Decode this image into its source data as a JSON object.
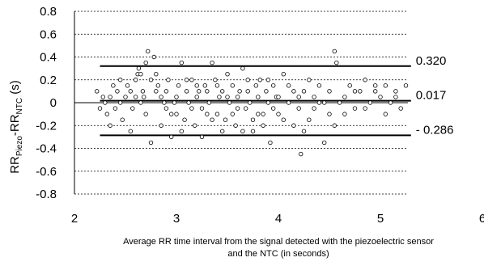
{
  "chart_data": {
    "type": "scatter",
    "title": "",
    "xlabel_line1": "Average RR time interval from the signal detected with the piezoelectric sensor",
    "xlabel_line2": "and the NTC (in seconds)",
    "ylabel": {
      "main": "RR",
      "sub1": "Piezo",
      "dash": "-RR",
      "sub2": "NTC",
      "unit": " (s)"
    },
    "xlim": [
      2,
      6
    ],
    "ylim": [
      -0.8,
      0.8
    ],
    "xticks": [
      2,
      3,
      4,
      5,
      6
    ],
    "xtick_labels": [
      "2",
      "3",
      "4",
      "5",
      "6"
    ],
    "yticks": [
      0.8,
      0.6,
      0.4,
      0.2,
      0,
      -0.2,
      -0.4,
      -0.6,
      -0.8
    ],
    "ytick_labels": [
      "0.8",
      "0.6",
      "0.4",
      "0.2",
      "0",
      "-0.2",
      "-0.4",
      "-0.6",
      "-0.8"
    ],
    "grid": "horizontal-dashed",
    "reference_lines": [
      {
        "y": 0.32,
        "label": "0.320"
      },
      {
        "y": 0.017,
        "label": "0.017"
      },
      {
        "y": -0.286,
        "label": "- 0.286"
      }
    ],
    "reference_line_x_range": [
      2.25,
      5.3
    ],
    "points": [
      [
        2.22,
        0.1
      ],
      [
        2.25,
        -0.05
      ],
      [
        2.28,
        0.05
      ],
      [
        2.3,
        0
      ],
      [
        2.32,
        -0.1
      ],
      [
        2.35,
        0.05
      ],
      [
        2.38,
        0.15
      ],
      [
        2.4,
        -0.05
      ],
      [
        2.42,
        0.1
      ],
      [
        2.45,
        0
      ],
      [
        2.47,
        -0.15
      ],
      [
        2.5,
        0.05
      ],
      [
        2.52,
        0.15
      ],
      [
        2.55,
        0.1
      ],
      [
        2.57,
        -0.05
      ],
      [
        2.6,
        0.2
      ],
      [
        2.62,
        0.25
      ],
      [
        2.63,
        0.3
      ],
      [
        2.65,
        0.25
      ],
      [
        2.67,
        0.1
      ],
      [
        2.68,
        0.05
      ],
      [
        2.7,
        0.35
      ],
      [
        2.72,
        0.45
      ],
      [
        2.75,
        0.2
      ],
      [
        2.78,
        0.4
      ],
      [
        2.8,
        0.25
      ],
      [
        2.82,
        0.15
      ],
      [
        2.85,
        0.05
      ],
      [
        2.88,
        0
      ],
      [
        2.9,
        -0.05
      ],
      [
        2.92,
        0.2
      ],
      [
        2.95,
        -0.1
      ],
      [
        2.98,
        0
      ],
      [
        3,
        0.05
      ],
      [
        3.02,
        0.15
      ],
      [
        3.05,
        0.35
      ],
      [
        3.08,
        -0.15
      ],
      [
        3.1,
        0.1
      ],
      [
        3.12,
        0
      ],
      [
        3.15,
        0.2
      ],
      [
        3.18,
        -0.2
      ],
      [
        3.2,
        0.05
      ],
      [
        3.22,
        0.1
      ],
      [
        3.25,
        -0.05
      ],
      [
        3.28,
        0.15
      ],
      [
        3.3,
        0.1
      ],
      [
        3.32,
        0
      ],
      [
        3.35,
        0.35
      ],
      [
        3.38,
        0.2
      ],
      [
        3.4,
        -0.1
      ],
      [
        3.42,
        0.05
      ],
      [
        3.45,
        0.1
      ],
      [
        3.48,
        -0.15
      ],
      [
        3.5,
        0.25
      ],
      [
        3.52,
        0
      ],
      [
        3.55,
        0.15
      ],
      [
        3.58,
        -0.2
      ],
      [
        3.6,
        0.05
      ],
      [
        3.62,
        0.1
      ],
      [
        3.65,
        0.3
      ],
      [
        3.68,
        -0.05
      ],
      [
        3.7,
        0.2
      ],
      [
        3.72,
        0
      ],
      [
        3.75,
        -0.25
      ],
      [
        3.78,
        0.15
      ],
      [
        3.8,
        0.05
      ],
      [
        3.82,
        0.2
      ],
      [
        3.85,
        -0.1
      ],
      [
        3.88,
        0.1
      ],
      [
        3.9,
        0
      ],
      [
        3.92,
        -0.35
      ],
      [
        3.95,
        0.15
      ],
      [
        3.98,
        0.05
      ],
      [
        4,
        -0.1
      ],
      [
        4.05,
        0.25
      ],
      [
        4.1,
        0
      ],
      [
        4.15,
        -0.2
      ],
      [
        4.2,
        0.05
      ],
      [
        4.22,
        -0.45
      ],
      [
        4.25,
        0.1
      ],
      [
        4.3,
        0.2
      ],
      [
        4.35,
        -0.05
      ],
      [
        4.4,
        0.15
      ],
      [
        4.45,
        -0.35
      ],
      [
        4.5,
        0.1
      ],
      [
        4.55,
        0.45
      ],
      [
        4.57,
        0.35
      ],
      [
        4.6,
        0
      ],
      [
        4.65,
        -0.1
      ],
      [
        4.7,
        0.15
      ],
      [
        4.75,
        -0.05
      ],
      [
        4.8,
        0.1
      ],
      [
        4.85,
        0.2
      ],
      [
        4.9,
        0
      ],
      [
        4.95,
        0.15
      ],
      [
        5,
        0.05
      ],
      [
        5.05,
        0.15
      ],
      [
        5.1,
        0
      ],
      [
        5.15,
        0.1
      ],
      [
        5.2,
        -0.05
      ],
      [
        5.25,
        0.15
      ],
      [
        2.35,
        -0.2
      ],
      [
        2.45,
        0.2
      ],
      [
        2.55,
        -0.25
      ],
      [
        2.65,
        0
      ],
      [
        2.75,
        -0.35
      ],
      [
        2.85,
        -0.2
      ],
      [
        2.95,
        -0.3
      ],
      [
        3.05,
        -0.25
      ],
      [
        3.15,
        -0.05
      ],
      [
        3.25,
        -0.3
      ],
      [
        3.35,
        -0.15
      ],
      [
        3.45,
        -0.25
      ],
      [
        3.55,
        -0.1
      ],
      [
        3.65,
        -0.25
      ],
      [
        3.75,
        -0.15
      ],
      [
        3.85,
        -0.2
      ],
      [
        3.95,
        -0.05
      ],
      [
        4.05,
        -0.15
      ],
      [
        4.15,
        0.1
      ],
      [
        4.25,
        -0.25
      ],
      [
        4.35,
        0.05
      ],
      [
        4.45,
        0
      ],
      [
        4.55,
        -0.2
      ],
      [
        4.65,
        0.05
      ],
      [
        4.75,
        0.1
      ],
      [
        4.85,
        -0.05
      ],
      [
        4.95,
        0.1
      ],
      [
        5.05,
        -0.1
      ],
      [
        5.15,
        0.05
      ],
      [
        2.6,
        0.05
      ],
      [
        2.7,
        -0.1
      ],
      [
        2.8,
        0.1
      ],
      [
        2.9,
        0.1
      ],
      [
        3,
        -0.1
      ],
      [
        3.1,
        0.2
      ],
      [
        3.2,
        0.15
      ],
      [
        3.3,
        -0.1
      ],
      [
        3.4,
        0.15
      ],
      [
        3.5,
        0.05
      ],
      [
        3.6,
        -0.05
      ],
      [
        3.7,
        0.1
      ],
      [
        3.8,
        -0.1
      ],
      [
        3.9,
        0.2
      ],
      [
        4,
        0.05
      ],
      [
        4.1,
        0.15
      ],
      [
        4.2,
        -0.05
      ],
      [
        4.3,
        -0.15
      ],
      [
        4.4,
        0
      ],
      [
        4.5,
        -0.1
      ]
    ]
  }
}
